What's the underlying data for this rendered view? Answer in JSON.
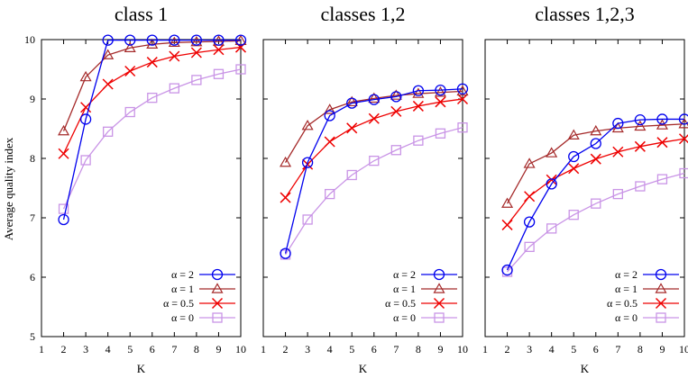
{
  "chart_data": {
    "type": "line",
    "ylabel": "Average quality index",
    "xlabel": "K",
    "xlim": [
      1,
      10
    ],
    "ylim": [
      5,
      10
    ],
    "xticks": [
      1,
      2,
      3,
      4,
      5,
      6,
      7,
      8,
      9,
      10
    ],
    "yticks": [
      5,
      6,
      7,
      8,
      9,
      10
    ],
    "grid": false,
    "legend_position": "bottom-right",
    "series_styles": [
      {
        "label": "α = 2",
        "color": "#0000ee",
        "marker": "circle"
      },
      {
        "label": "α = 1",
        "color": "#a52a2a",
        "marker": "triangle"
      },
      {
        "label": "α = 0.5",
        "color": "#ee0000",
        "marker": "x"
      },
      {
        "label": "α = 0",
        "color": "#c994e6",
        "marker": "square"
      }
    ],
    "panels": [
      {
        "title": "class 1",
        "x": [
          2,
          3,
          4,
          5,
          6,
          7,
          8,
          9,
          10
        ],
        "series": [
          {
            "name": "α = 2",
            "values": [
              6.97,
              8.66,
              9.99,
              9.99,
              9.99,
              9.99,
              9.99,
              9.99,
              9.99
            ]
          },
          {
            "name": "α = 1",
            "values": [
              8.46,
              9.37,
              9.74,
              9.86,
              9.92,
              9.95,
              9.96,
              9.97,
              9.98
            ]
          },
          {
            "name": "α = 0.5",
            "values": [
              8.08,
              8.86,
              9.25,
              9.47,
              9.62,
              9.72,
              9.78,
              9.83,
              9.87
            ]
          },
          {
            "name": "α = 0",
            "values": [
              7.15,
              7.97,
              8.45,
              8.78,
              9.02,
              9.18,
              9.32,
              9.42,
              9.5
            ]
          }
        ]
      },
      {
        "title": "classes 1,2",
        "x": [
          2,
          3,
          4,
          5,
          6,
          7,
          8,
          9,
          10
        ],
        "series": [
          {
            "name": "α = 2",
            "values": [
              6.4,
              7.93,
              8.72,
              8.93,
              8.99,
              9.04,
              9.14,
              9.15,
              9.17
            ]
          },
          {
            "name": "α = 1",
            "values": [
              7.93,
              8.55,
              8.82,
              8.95,
              9.01,
              9.06,
              9.09,
              9.11,
              9.13
            ]
          },
          {
            "name": "α = 0.5",
            "values": [
              7.34,
              7.9,
              8.28,
              8.51,
              8.67,
              8.79,
              8.88,
              8.95,
              9.0
            ]
          },
          {
            "name": "α = 0",
            "values": [
              6.38,
              6.97,
              7.4,
              7.72,
              7.96,
              8.14,
              8.3,
              8.42,
              8.52
            ]
          }
        ]
      },
      {
        "title": "classes 1,2,3",
        "x": [
          2,
          3,
          4,
          5,
          6,
          7,
          8,
          9,
          10
        ],
        "series": [
          {
            "name": "α = 2",
            "values": [
              6.12,
              6.93,
              7.57,
              8.03,
              8.25,
              8.59,
              8.65,
              8.66,
              8.66
            ]
          },
          {
            "name": "α = 1",
            "values": [
              7.24,
              7.91,
              8.09,
              8.39,
              8.46,
              8.51,
              8.54,
              8.56,
              8.58
            ]
          },
          {
            "name": "α = 0.5",
            "values": [
              6.88,
              7.36,
              7.64,
              7.83,
              7.99,
              8.11,
              8.2,
              8.27,
              8.33
            ]
          },
          {
            "name": "α = 0",
            "values": [
              6.09,
              6.51,
              6.82,
              7.05,
              7.24,
              7.4,
              7.53,
              7.65,
              7.75
            ]
          }
        ]
      }
    ]
  }
}
